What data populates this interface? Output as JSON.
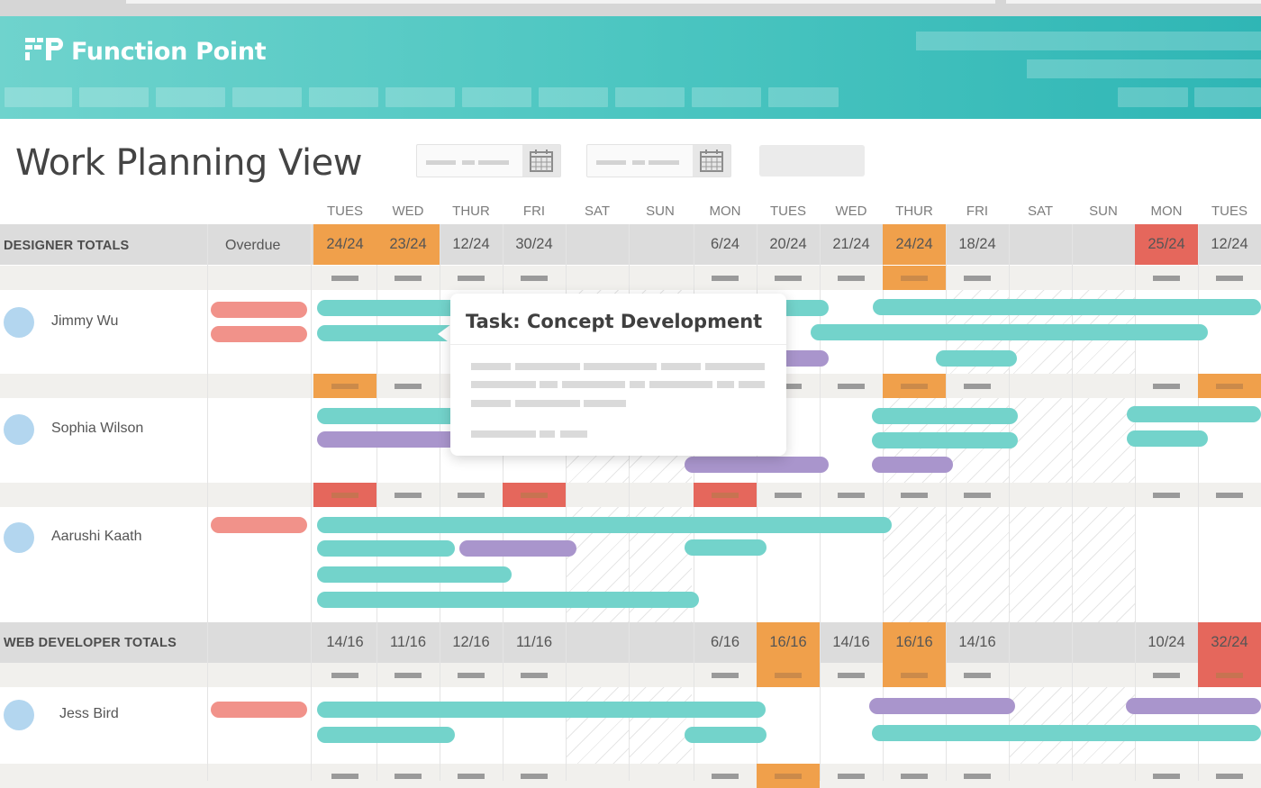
{
  "app": {
    "name": "Function Point"
  },
  "page": {
    "title": "Work Planning View"
  },
  "days": [
    "TUES",
    "WED",
    "THUR",
    "FRI",
    "SAT",
    "SUN",
    "MON",
    "TUES",
    "WED",
    "THUR",
    "FRI",
    "SAT",
    "SUN",
    "MON",
    "TUES"
  ],
  "groups": {
    "designer": {
      "label": "DESIGNER TOTALS",
      "overdue_label": "Overdue",
      "totals": [
        "24/24",
        "23/24",
        "12/24",
        "30/24",
        "",
        "",
        "6/24",
        "20/24",
        "21/24",
        "24/24",
        "18/24",
        "",
        "",
        "25/24",
        "12/24"
      ]
    },
    "webdev": {
      "label": "WEB DEVELOPER TOTALS",
      "totals": [
        "14/16",
        "11/16",
        "12/16",
        "11/16",
        "",
        "",
        "6/16",
        "16/16",
        "14/16",
        "16/16",
        "14/16",
        "",
        "",
        "10/24",
        "32/24"
      ]
    }
  },
  "people": [
    {
      "name": "Jimmy Wu"
    },
    {
      "name": "Sophia Wilson"
    },
    {
      "name": "Aarushi Kaath"
    },
    {
      "name": "Jess Bird"
    }
  ],
  "tooltip": {
    "title": "Task: Concept Development"
  },
  "colors": {
    "header_start": "#6fd3cd",
    "header_end": "#2fb6b5",
    "orange": "#f0a04b",
    "red": "#e5675c",
    "teal": "#73d3cb",
    "purple": "#a995cc",
    "salmon": "#f1928a"
  },
  "icons": [
    "calendar-icon",
    "calendar-icon"
  ]
}
